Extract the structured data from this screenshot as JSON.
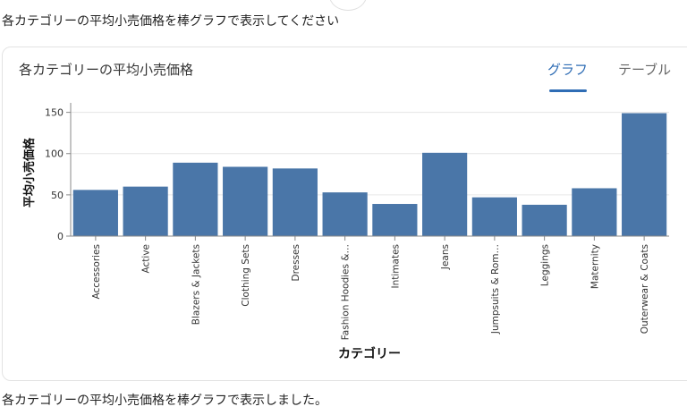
{
  "conversation": {
    "user_message": "各カテゴリーの平均小売価格を棒グラフで表示してください",
    "assistant_message": "各カテゴリーの平均小売価格を棒グラフで表示しました。"
  },
  "card": {
    "title": "各カテゴリーの平均小売価格",
    "tabs": [
      {
        "label": "グラフ",
        "active": true
      },
      {
        "label": "テーブル",
        "active": false
      }
    ]
  },
  "colors": {
    "bar": "#4a76a8",
    "accent": "#2f6db5",
    "grid": "#e6e6e6"
  },
  "chart_data": {
    "type": "bar",
    "title": "各カテゴリーの平均小売価格",
    "xlabel": "カテゴリー",
    "ylabel": "平均小売価格",
    "ylim": [
      0,
      155
    ],
    "yticks": [
      0,
      50,
      100,
      150
    ],
    "grid": true,
    "categories": [
      "Accessories",
      "Active",
      "Blazers & Jackets",
      "Clothing Sets",
      "Dresses",
      "Fashion Hoodies &…",
      "Intimates",
      "Jeans",
      "Jumpsuits & Rom…",
      "Leggings",
      "Maternity",
      "Outerwear & Coats"
    ],
    "values": [
      56,
      60,
      89,
      84,
      82,
      53,
      39,
      101,
      47,
      38,
      58,
      149
    ]
  }
}
